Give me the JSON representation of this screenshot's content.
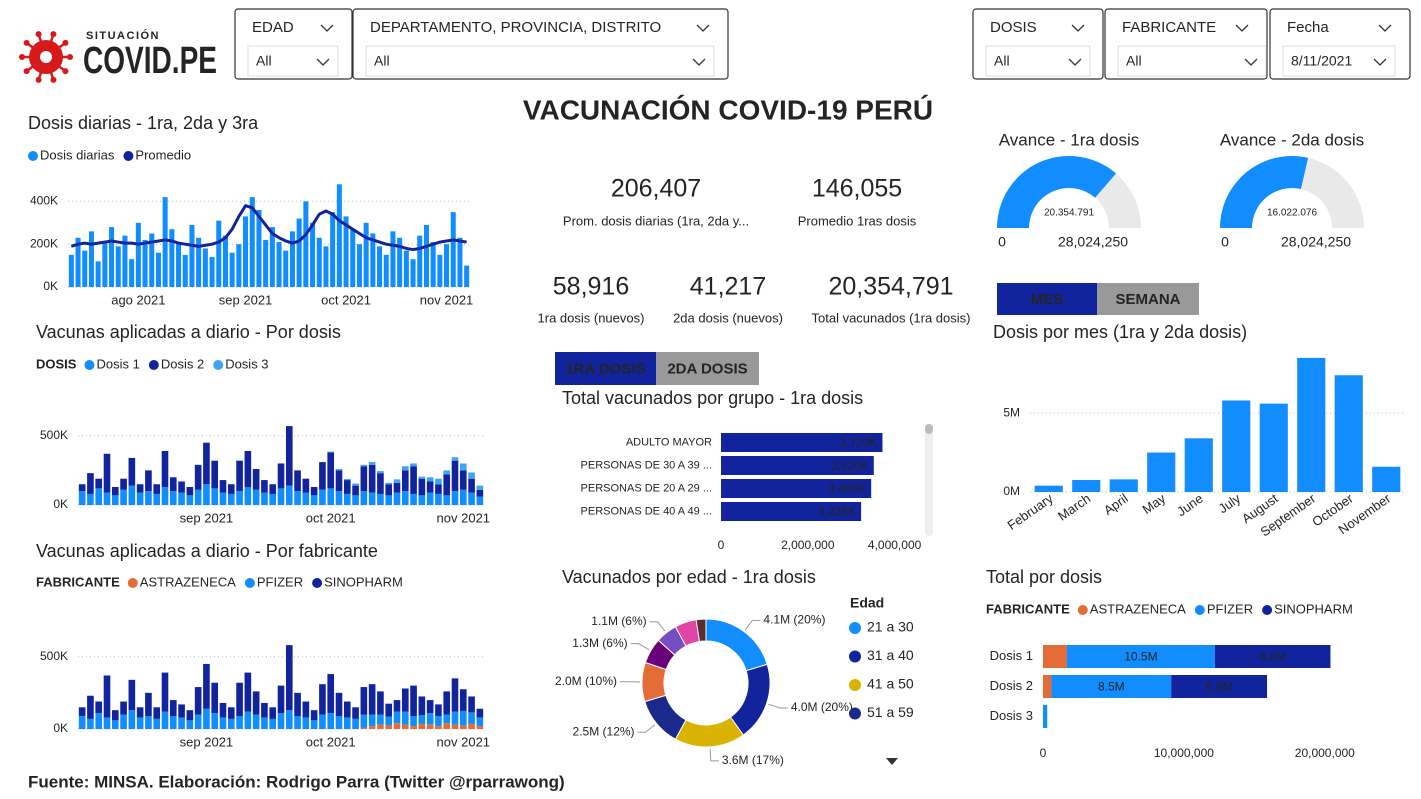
{
  "header": {
    "logo_small": "SITUACIÓN",
    "logo": "COVID.PE",
    "title": "VACUNACIÓN COVID-19 PERÚ",
    "footer": "Fuente: MINSA. Elaboración: Rodrigo Parra (Twitter @rparrawong)"
  },
  "filters": [
    {
      "label": "EDAD",
      "value": "All"
    },
    {
      "label": "DEPARTAMENTO, PROVINCIA, DISTRITO",
      "value": "All"
    },
    {
      "label": "DOSIS",
      "value": "All"
    },
    {
      "label": "FABRICANTE",
      "value": "All"
    },
    {
      "label": "Fecha",
      "value": "8/11/2021"
    }
  ],
  "kpis": [
    {
      "value": "206,407",
      "label": "Prom. dosis diarias (1ra, 2da y..."
    },
    {
      "value": "146,055",
      "label": "Promedio 1ras dosis"
    },
    {
      "value": "58,916",
      "label": "1ra dosis (nuevos)"
    },
    {
      "value": "41,217",
      "label": "2da dosis (nuevos)"
    },
    {
      "value": "20,354,791",
      "label": "Total vacunados (1ra dosis)"
    }
  ],
  "buttons": {
    "period": [
      "MES",
      "SEMANA"
    ],
    "dose": [
      "1RA DOSIS",
      "2DA DOSIS"
    ]
  },
  "chart_data": [
    {
      "type": "bar_line",
      "title": "Dosis diarias - 1ra, 2da y 3ra",
      "grid": true,
      "categories": [
        null,
        null,
        null,
        null,
        null,
        null,
        null,
        null,
        null,
        null,
        "ago 2021",
        null,
        null,
        null,
        null,
        null,
        null,
        null,
        null,
        null,
        null,
        null,
        null,
        null,
        null,
        null,
        "sep 2021",
        null,
        null,
        null,
        null,
        null,
        null,
        null,
        null,
        null,
        null,
        null,
        null,
        null,
        null,
        "oct 2021",
        null,
        null,
        null,
        null,
        null,
        null,
        null,
        null,
        null,
        null,
        null,
        null,
        null,
        null,
        "nov 2021",
        null,
        null,
        null
      ],
      "series": [
        {
          "name": "Dosis diarias",
          "color": "#118DFF",
          "values": [
            150000,
            230000,
            170000,
            260000,
            120000,
            210000,
            280000,
            190000,
            240000,
            130000,
            300000,
            220000,
            250000,
            160000,
            420000,
            270000,
            200000,
            150000,
            290000,
            230000,
            180000,
            140000,
            310000,
            240000,
            160000,
            200000,
            330000,
            420000,
            360000,
            220000,
            280000,
            210000,
            170000,
            260000,
            320000,
            400000,
            300000,
            230000,
            190000,
            350000,
            480000,
            330000,
            270000,
            200000,
            300000,
            250000,
            190000,
            150000,
            260000,
            230000,
            170000,
            130000,
            240000,
            290000,
            210000,
            150000,
            200000,
            350000,
            230000,
            100000
          ]
        },
        {
          "name": "Promedio",
          "color": "#12239E",
          "type": "line",
          "values": [
            190000,
            200000,
            205000,
            200000,
            205000,
            210000,
            215000,
            210000,
            205000,
            205000,
            200000,
            205000,
            210000,
            215000,
            220000,
            215000,
            205000,
            200000,
            195000,
            190000,
            195000,
            200000,
            210000,
            230000,
            270000,
            330000,
            380000,
            370000,
            330000,
            290000,
            250000,
            230000,
            215000,
            205000,
            215000,
            245000,
            290000,
            340000,
            355000,
            340000,
            310000,
            290000,
            270000,
            250000,
            230000,
            220000,
            210000,
            200000,
            195000,
            190000,
            180000,
            175000,
            180000,
            190000,
            200000,
            210000,
            215000,
            220000,
            215000,
            210000
          ]
        }
      ],
      "ylim": [
        0,
        500000
      ],
      "yticks": [
        {
          "value": 0,
          "label": "0K"
        },
        {
          "value": 200000,
          "label": "200K"
        },
        {
          "value": 400000,
          "label": "400K"
        }
      ]
    },
    {
      "type": "stacked_bar",
      "title": "Vacunas aplicadas a diario - Por dosis",
      "legend_title": "DOSIS",
      "grid": true,
      "categories": [
        null,
        null,
        null,
        null,
        null,
        null,
        null,
        null,
        null,
        null,
        null,
        null,
        null,
        null,
        null,
        "sep 2021",
        null,
        null,
        null,
        null,
        null,
        null,
        null,
        null,
        null,
        null,
        null,
        null,
        null,
        null,
        "oct 2021",
        null,
        null,
        null,
        null,
        null,
        null,
        null,
        null,
        null,
        null,
        null,
        null,
        null,
        null,
        null,
        "nov 2021",
        null,
        null
      ],
      "series": [
        {
          "name": "Dosis 1",
          "color": "#118DFF",
          "values": [
            100000,
            80000,
            120000,
            90000,
            70000,
            110000,
            140000,
            90000,
            100000,
            80000,
            130000,
            100000,
            90000,
            70000,
            110000,
            150000,
            120000,
            90000,
            80000,
            100000,
            130000,
            110000,
            90000,
            80000,
            120000,
            140000,
            100000,
            90000,
            70000,
            110000,
            120000,
            100000,
            80000,
            70000,
            100000,
            90000,
            80000,
            70000,
            90000,
            100000,
            80000,
            70000,
            90000,
            80000,
            70000,
            100000,
            110000,
            90000,
            60000
          ]
        },
        {
          "name": "Dosis 2",
          "color": "#12239E",
          "values": [
            50000,
            150000,
            70000,
            280000,
            60000,
            80000,
            200000,
            60000,
            150000,
            70000,
            260000,
            100000,
            80000,
            60000,
            180000,
            300000,
            200000,
            90000,
            70000,
            220000,
            260000,
            150000,
            90000,
            70000,
            180000,
            430000,
            150000,
            100000,
            60000,
            200000,
            260000,
            150000,
            100000,
            70000,
            180000,
            200000,
            150000,
            80000,
            70000,
            150000,
            200000,
            120000,
            80000,
            70000,
            150000,
            220000,
            140000,
            100000,
            50000
          ]
        },
        {
          "name": "Dosis 3",
          "color": "#41A4F0",
          "values": [
            0,
            0,
            0,
            0,
            0,
            0,
            0,
            0,
            0,
            0,
            0,
            0,
            0,
            0,
            0,
            0,
            0,
            0,
            0,
            0,
            0,
            0,
            0,
            0,
            0,
            0,
            0,
            0,
            0,
            0,
            5000,
            10000,
            8000,
            15000,
            10000,
            20000,
            15000,
            10000,
            25000,
            30000,
            20000,
            15000,
            30000,
            40000,
            30000,
            25000,
            50000,
            45000,
            30000
          ]
        }
      ],
      "ylim": [
        0,
        650000
      ],
      "yticks": [
        {
          "value": 0,
          "label": "0K"
        },
        {
          "value": 500000,
          "label": "500K"
        }
      ]
    },
    {
      "type": "stacked_bar",
      "title": "Vacunas aplicadas a diario - Por fabricante",
      "legend_title": "FABRICANTE",
      "grid": true,
      "categories": [
        null,
        null,
        null,
        null,
        null,
        null,
        null,
        null,
        null,
        null,
        null,
        null,
        null,
        null,
        null,
        "sep 2021",
        null,
        null,
        null,
        null,
        null,
        null,
        null,
        null,
        null,
        null,
        null,
        null,
        null,
        null,
        "oct 2021",
        null,
        null,
        null,
        null,
        null,
        null,
        null,
        null,
        null,
        null,
        null,
        null,
        null,
        null,
        null,
        "nov 2021",
        null,
        null
      ],
      "series": [
        {
          "name": "ASTRAZENECA",
          "color": "#E66C37",
          "values": [
            0,
            0,
            0,
            0,
            0,
            0,
            0,
            0,
            0,
            0,
            0,
            0,
            0,
            0,
            0,
            0,
            0,
            0,
            0,
            0,
            0,
            0,
            0,
            0,
            0,
            0,
            0,
            0,
            0,
            0,
            0,
            0,
            0,
            0,
            10000,
            20000,
            30000,
            25000,
            40000,
            30000,
            20000,
            35000,
            30000,
            20000,
            40000,
            30000,
            25000,
            35000,
            20000
          ]
        },
        {
          "name": "PFIZER",
          "color": "#118DFF",
          "values": [
            90000,
            70000,
            110000,
            80000,
            60000,
            100000,
            130000,
            80000,
            90000,
            70000,
            120000,
            90000,
            80000,
            60000,
            100000,
            140000,
            110000,
            80000,
            70000,
            90000,
            120000,
            100000,
            80000,
            70000,
            110000,
            130000,
            90000,
            80000,
            60000,
            100000,
            110000,
            90000,
            80000,
            70000,
            90000,
            80000,
            70000,
            60000,
            80000,
            90000,
            70000,
            60000,
            80000,
            70000,
            60000,
            90000,
            100000,
            80000,
            60000
          ]
        },
        {
          "name": "SINOPHARM",
          "color": "#12239E",
          "values": [
            60000,
            160000,
            80000,
            290000,
            70000,
            90000,
            210000,
            70000,
            160000,
            80000,
            270000,
            110000,
            90000,
            70000,
            190000,
            310000,
            210000,
            100000,
            80000,
            230000,
            270000,
            160000,
            100000,
            80000,
            190000,
            450000,
            160000,
            110000,
            70000,
            210000,
            270000,
            160000,
            110000,
            80000,
            190000,
            210000,
            160000,
            90000,
            80000,
            160000,
            210000,
            130000,
            90000,
            80000,
            160000,
            230000,
            150000,
            110000,
            60000
          ]
        }
      ],
      "ylim": [
        0,
        650000
      ],
      "yticks": [
        {
          "value": 0,
          "label": "0K"
        },
        {
          "value": 500000,
          "label": "500K"
        }
      ]
    },
    {
      "type": "gauge",
      "title": "Avance - 1ra dosis",
      "min": 0,
      "max": 28024250,
      "max_label": "28,024,250",
      "value": 20354791,
      "value_label": "20.354.791",
      "color": "#118DFF"
    },
    {
      "type": "gauge",
      "title": "Avance - 2da dosis",
      "min": 0,
      "max": 28024250,
      "max_label": "28,024,250",
      "value": 16022076,
      "value_label": "16.022.076",
      "color": "#118DFF"
    },
    {
      "type": "hbar",
      "title": "Total vacunados por grupo - 1ra dosis",
      "categories": [
        "ADULTO MAYOR",
        "PERSONAS DE 30 A 39 ...",
        "PERSONAS DE 20 A 29 ...",
        "PERSONAS DE 40 A 49 ..."
      ],
      "values": [
        3720000,
        3520000,
        3460000,
        3228000
      ],
      "value_labels": [
        "3,720K",
        "3,520K",
        "3,460K",
        "3,228K"
      ],
      "color": "#12239E",
      "xlim": [
        0,
        4700000
      ],
      "xticks": [
        0,
        {
          "value": 2000000,
          "label": "2,000,000"
        },
        {
          "value": 4000000,
          "label": "4,000,000"
        }
      ]
    },
    {
      "type": "bar",
      "title": "Dosis por mes (1ra y 2da dosis)",
      "grid": true,
      "categories": [
        "February",
        "March",
        "April",
        "May",
        "June",
        "July",
        "August",
        "September",
        "October",
        "November"
      ],
      "values": [
        400000,
        760000,
        800000,
        2500000,
        3400000,
        5800000,
        5600000,
        8500000,
        7400000,
        1600000
      ],
      "color": "#118DFF",
      "ylim": [
        0,
        9000000
      ],
      "yticks": [
        {
          "value": 0,
          "label": "0M"
        },
        {
          "value": 5000000,
          "label": "5M"
        }
      ]
    },
    {
      "type": "donut",
      "title": "Vacunados por edad - 1ra dosis",
      "legend_title": "Edad",
      "categories": [
        "21 a 30",
        "31 a 40",
        "41 a 50",
        "51 a 59",
        null,
        null,
        null,
        null,
        null
      ],
      "values": [
        4100000,
        4000000,
        3600000,
        2500000,
        2000000,
        1300000,
        1100000,
        1100000,
        500000
      ],
      "value_labels": [
        "4.1M (20%)",
        "4.0M (20%)",
        "3.6M (17%)",
        "2.5M (12%)",
        "2.0M (10%)",
        "1.3M (6%)",
        "1.1M (6%)",
        null,
        null
      ],
      "colors": [
        "#118DFF",
        "#12239E",
        "#D9B300",
        "#1A2A8C",
        "#E66C37",
        "#6B007B",
        "#744EC2",
        "#E044A7",
        "#5C2D2D"
      ]
    },
    {
      "type": "stacked_hbar",
      "title": "Total por dosis",
      "legend_title": "FABRICANTE",
      "categories": [
        "Dosis 1",
        "Dosis 2",
        "Dosis 3"
      ],
      "series": [
        {
          "name": "ASTRAZENECA",
          "color": "#E66C37",
          "values": [
            1700000,
            600000,
            0
          ],
          "value_labels": [
            null,
            null,
            null
          ]
        },
        {
          "name": "PFIZER",
          "color": "#118DFF",
          "values": [
            10500000,
            8500000,
            300000
          ],
          "value_labels": [
            "10.5M",
            "8.5M",
            null
          ]
        },
        {
          "name": "SINOPHARM",
          "color": "#12239E",
          "values": [
            8200000,
            6800000,
            0
          ],
          "value_labels": [
            "8.2M",
            "6.8M",
            null
          ]
        }
      ],
      "xlim": [
        0,
        22000000
      ],
      "xticks": [
        0,
        {
          "value": 10000000,
          "label": "10,000,000"
        },
        {
          "value": 20000000,
          "label": "20,000,000"
        }
      ]
    }
  ]
}
